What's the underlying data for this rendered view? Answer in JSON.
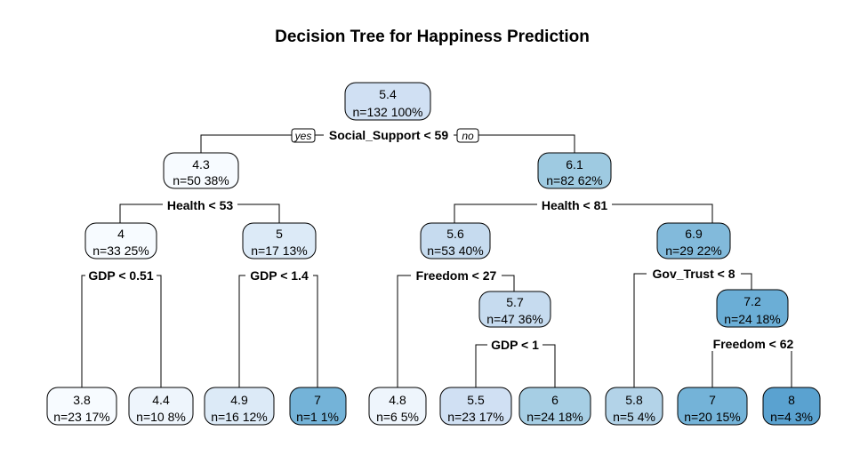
{
  "title": "Decision Tree for Happiness Prediction",
  "root_labels": {
    "yes": "yes",
    "no": "no"
  },
  "splits": {
    "root": "Social_Support < 59",
    "left": "Health < 53",
    "right": "Health < 81",
    "ll": "GDP < 0.51",
    "lr": "GDP < 1.4",
    "rl": "Freedom < 27",
    "rlr": "GDP < 1",
    "rr": "Gov_Trust < 8",
    "rrr": "Freedom < 62"
  },
  "nodes": {
    "root": {
      "value": "5.4",
      "stats": "n=132  100%",
      "color": "#d0e0f3"
    },
    "left": {
      "value": "4.3",
      "stats": "n=50  38%",
      "color": "#f7fbff"
    },
    "right": {
      "value": "6.1",
      "stats": "n=82  62%",
      "color": "#9ecae1"
    },
    "ll": {
      "value": "4",
      "stats": "n=33  25%",
      "color": "#f7fbff"
    },
    "lr": {
      "value": "5",
      "stats": "n=17  13%",
      "color": "#dceaf7"
    },
    "rl": {
      "value": "5.6",
      "stats": "n=53  40%",
      "color": "#c6dbef"
    },
    "rr": {
      "value": "6.9",
      "stats": "n=29  22%",
      "color": "#82badb"
    },
    "rlr": {
      "value": "5.7",
      "stats": "n=47  36%",
      "color": "#c6dbef"
    },
    "rrr": {
      "value": "7.2",
      "stats": "n=24  18%",
      "color": "#6baed6"
    }
  },
  "leaves": [
    {
      "id": "leaf-1",
      "value": "3.8",
      "stats": "n=23  17%",
      "color": "#f7fbff"
    },
    {
      "id": "leaf-2",
      "value": "4.4",
      "stats": "n=10  8%",
      "color": "#eef5fc"
    },
    {
      "id": "leaf-3",
      "value": "4.9",
      "stats": "n=16  12%",
      "color": "#dceaf7"
    },
    {
      "id": "leaf-4",
      "value": "7",
      "stats": "n=1  1%",
      "color": "#74b3d8"
    },
    {
      "id": "leaf-5",
      "value": "4.8",
      "stats": "n=6  5%",
      "color": "#eef5fc"
    },
    {
      "id": "leaf-6",
      "value": "5.5",
      "stats": "n=23  17%",
      "color": "#d0e0f3"
    },
    {
      "id": "leaf-7",
      "value": "6",
      "stats": "n=24  18%",
      "color": "#a6cee4"
    },
    {
      "id": "leaf-8",
      "value": "5.8",
      "stats": "n=5  4%",
      "color": "#b3d3e8"
    },
    {
      "id": "leaf-9",
      "value": "7",
      "stats": "n=20  15%",
      "color": "#74b3d8"
    },
    {
      "id": "leaf-10",
      "value": "8",
      "stats": "n=4  3%",
      "color": "#5aa2d0"
    }
  ]
}
